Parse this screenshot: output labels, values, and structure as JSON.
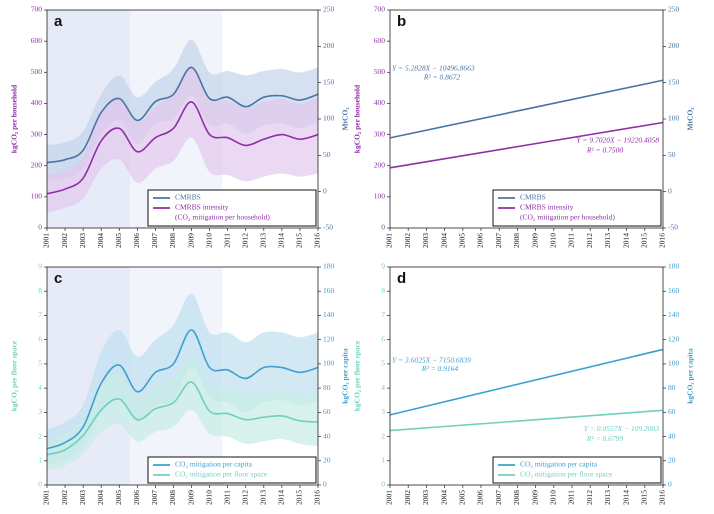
{
  "chart_data": [
    {
      "type": "line",
      "panel_label": "a",
      "ylabel": "kgCO₂ per household",
      "y2label": "MtCO₂",
      "x": [
        2001,
        2002,
        2003,
        2004,
        2005,
        2006,
        2007,
        2008,
        2009,
        2010,
        2011,
        2012,
        2013,
        2014,
        2015,
        2016
      ],
      "xlim": [
        2001,
        2016
      ],
      "xticks": [
        2001,
        2002,
        2003,
        2004,
        2005,
        2006,
        2007,
        2008,
        2009,
        2010,
        2011,
        2012,
        2013,
        2014,
        2015,
        2016
      ],
      "ylim": [
        0,
        700
      ],
      "yticks": [
        0,
        100,
        200,
        300,
        400,
        500,
        600,
        700
      ],
      "y2lim": [
        -50,
        250
      ],
      "y2ticks": [
        -50,
        0,
        50,
        100,
        150,
        200,
        250
      ],
      "shaded_spans": [
        [
          2001,
          2005.6
        ],
        [
          2005.6,
          2010.7
        ]
      ],
      "legend": "lower right",
      "series": [
        {
          "name": "CMRBS",
          "color": "#4a74a4",
          "band_color": "#c3d4ea",
          "axis": "y2",
          "values": [
            40,
            44,
            57,
            109,
            128,
            98,
            124,
            134,
            171,
            128,
            130,
            117,
            130,
            132,
            126,
            134
          ],
          "lower": [
            14,
            19,
            31,
            79,
            98,
            66,
            94,
            100,
            132,
            91,
            94,
            79,
            91,
            94,
            87,
            96
          ],
          "upper": [
            64,
            68,
            83,
            134,
            160,
            130,
            151,
            169,
            209,
            164,
            166,
            160,
            166,
            169,
            164,
            171
          ]
        },
        {
          "name": "CMRBS intensity",
          "note": "(CO₂ mitigation per household)",
          "color": "#8e2fa6",
          "band_color": "#e3c7ee",
          "values": [
            110,
            125,
            160,
            280,
            320,
            245,
            290,
            320,
            405,
            300,
            290,
            265,
            285,
            300,
            285,
            300
          ],
          "lower": [
            50,
            65,
            95,
            190,
            220,
            145,
            190,
            215,
            290,
            180,
            170,
            150,
            165,
            175,
            165,
            175
          ],
          "upper": [
            170,
            185,
            230,
            370,
            420,
            340,
            390,
            430,
            520,
            410,
            410,
            385,
            405,
            415,
            400,
            420
          ]
        }
      ]
    },
    {
      "type": "line",
      "panel_label": "b",
      "ylabel": "kgCO₂ per household",
      "y2label": "MtCO₂",
      "x": [
        2001,
        2016
      ],
      "xlim": [
        2001,
        2016
      ],
      "xticks": [
        2001,
        2002,
        2003,
        2004,
        2005,
        2006,
        2007,
        2008,
        2009,
        2010,
        2011,
        2012,
        2013,
        2014,
        2015,
        2016
      ],
      "ylim": [
        0,
        700
      ],
      "yticks": [
        0,
        100,
        200,
        300,
        400,
        500,
        600,
        700
      ],
      "y2lim": [
        -50,
        250
      ],
      "y2ticks": [
        -50,
        0,
        50,
        100,
        150,
        200,
        250
      ],
      "legend": "lower right",
      "annotations": [
        "Y = 5.2828X − 10496.8663",
        "R² = 0.8672",
        "Y = 9.7020X − 19220.4058",
        "R² = 0.7500"
      ],
      "series": [
        {
          "name": "CMRBS",
          "color": "#4a74a4",
          "axis": "y2",
          "values": [
            74.0,
            153.3
          ]
        },
        {
          "name": "CMRBS intensity",
          "note": "(CO₂ mitigation per household)",
          "color": "#8e2fa6",
          "values": [
            193.3,
            338.8
          ]
        }
      ]
    },
    {
      "type": "line",
      "panel_label": "c",
      "ylabel": "kgCO₂ per floor space",
      "y2label": "kgCO₂ per capita",
      "x": [
        2001,
        2002,
        2003,
        2004,
        2005,
        2006,
        2007,
        2008,
        2009,
        2010,
        2011,
        2012,
        2013,
        2014,
        2015,
        2016
      ],
      "xlim": [
        2001,
        2016
      ],
      "xticks": [
        2001,
        2002,
        2003,
        2004,
        2005,
        2006,
        2007,
        2008,
        2009,
        2010,
        2011,
        2012,
        2013,
        2014,
        2015,
        2016
      ],
      "ylim": [
        0,
        9
      ],
      "yticks": [
        0,
        1,
        2,
        3,
        4,
        5,
        6,
        7,
        8,
        9
      ],
      "y2lim": [
        0,
        180
      ],
      "y2ticks": [
        0,
        20,
        40,
        60,
        80,
        100,
        120,
        140,
        160,
        180
      ],
      "shaded_spans": [
        [
          2001,
          2005.6
        ],
        [
          2005.6,
          2010.7
        ]
      ],
      "legend": "lower right",
      "series": [
        {
          "name": "CO₂ mitigation per capita",
          "color": "#3d9fcf",
          "band_color": "#bfe0ef",
          "axis": "y2",
          "values": [
            30,
            35,
            48,
            84,
            99,
            77,
            93,
            100,
            128,
            97,
            95,
            88,
            97,
            97,
            93,
            97
          ],
          "lower": [
            18,
            20,
            32,
            60,
            70,
            52,
            66,
            70,
            98,
            72,
            68,
            60,
            68,
            70,
            66,
            70
          ],
          "upper": [
            46,
            52,
            66,
            110,
            128,
            106,
            120,
            132,
            158,
            126,
            126,
            118,
            126,
            126,
            122,
            126
          ]
        },
        {
          "name": "CO₂ mitigation per floor space",
          "color": "#72cfc0",
          "band_color": "#c6ede5",
          "values": [
            1.25,
            1.45,
            2.05,
            3.1,
            3.55,
            2.7,
            3.15,
            3.4,
            4.25,
            3.05,
            2.95,
            2.7,
            2.8,
            2.85,
            2.65,
            2.6
          ],
          "lower": [
            0.6,
            0.8,
            1.3,
            2.2,
            2.5,
            1.8,
            2.2,
            2.4,
            3.1,
            2.1,
            2.0,
            1.7,
            1.8,
            1.9,
            1.7,
            1.6
          ],
          "upper": [
            1.9,
            2.1,
            2.7,
            4.1,
            4.6,
            3.6,
            4.1,
            4.4,
            5.3,
            4.1,
            4.0,
            3.7,
            3.8,
            3.9,
            3.7,
            3.7
          ]
        }
      ]
    },
    {
      "type": "line",
      "panel_label": "d",
      "ylabel": "kgCO₂ per floor space",
      "y2label": "kgCO₂ per capita",
      "x": [
        2001,
        2016
      ],
      "xlim": [
        2001,
        2016
      ],
      "xticks": [
        2001,
        2002,
        2003,
        2004,
        2005,
        2006,
        2007,
        2008,
        2009,
        2010,
        2011,
        2012,
        2013,
        2014,
        2015,
        2016
      ],
      "ylim": [
        0,
        9
      ],
      "yticks": [
        0,
        1,
        2,
        3,
        4,
        5,
        6,
        7,
        8,
        9
      ],
      "y2lim": [
        0,
        180
      ],
      "y2ticks": [
        0,
        20,
        40,
        60,
        80,
        100,
        120,
        140,
        160,
        180
      ],
      "legend": "lower right",
      "annotations": [
        "Y = 3.6025X − 7150.6839",
        "R² = 0.9164",
        "Y = 0.0557X − 109.2083",
        "R² = 0.6799"
      ],
      "series": [
        {
          "name": "CO₂ mitigation per capita",
          "color": "#3d9fcf",
          "axis": "y2",
          "values": [
            57.9,
            111.95
          ]
        },
        {
          "name": "CO₂ mitigation per floor space",
          "color": "#72cfc0",
          "values": [
            2.247,
            3.083
          ]
        }
      ]
    }
  ]
}
